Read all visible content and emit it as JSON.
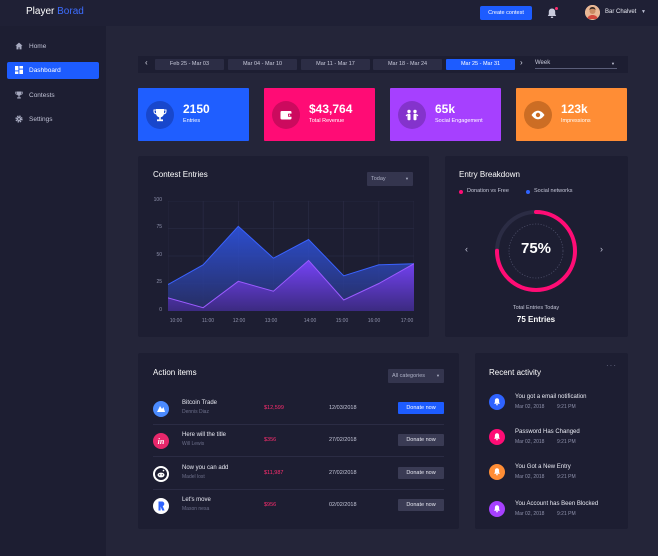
{
  "brand": {
    "part1": "Player",
    "part2": "Borad"
  },
  "topbar": {
    "create_label": "Create contest",
    "user_name": "Bar Chalvet"
  },
  "sidebar": {
    "items": [
      {
        "label": "Home",
        "icon": "home-icon"
      },
      {
        "label": "Dashboard",
        "icon": "dashboard-icon",
        "active": true
      },
      {
        "label": "Contests",
        "icon": "trophy-icon"
      },
      {
        "label": "Settings",
        "icon": "gear-icon"
      }
    ]
  },
  "datebar": {
    "ranges": [
      "Feb 25 - Mar 03",
      "Mar 04 - Mar 10",
      "Mar 11 - Mar 17",
      "Mar 18 - Mar 24",
      "Mar 25 - Mar 31"
    ],
    "active_index": 4,
    "period": "Week"
  },
  "stats": [
    {
      "value": "2150",
      "label": "Entries",
      "color": "#1f5eff",
      "icon": "trophy-icon"
    },
    {
      "value": "$43,764",
      "label": "Total Revenue",
      "color": "#ff0c75",
      "icon": "wallet-icon"
    },
    {
      "value": "65k",
      "label": "Social Engagement",
      "color": "#a640ff",
      "icon": "people-icon"
    },
    {
      "value": "123k",
      "label": "Impressions",
      "color": "#ff8d35",
      "icon": "eye-icon"
    }
  ],
  "contest_entries": {
    "title": "Contest Entries",
    "filter": "Today"
  },
  "chart_data": {
    "type": "area",
    "x": [
      "10:00",
      "11:00",
      "12:00",
      "13:00",
      "14:00",
      "15:00",
      "16:00",
      "17:00"
    ],
    "yticks": [
      0,
      25,
      50,
      75,
      100
    ],
    "ylim": [
      0,
      100
    ],
    "grid": true,
    "series": [
      {
        "color": "#3659e8",
        "values": [
          24,
          42,
          77,
          48,
          65,
          32,
          42,
          43
        ]
      },
      {
        "color": "#7d43ff",
        "values": [
          12,
          3,
          27,
          18,
          46,
          10,
          25,
          43
        ]
      }
    ]
  },
  "entry_breakdown": {
    "title": "Entry Breakdown",
    "legend": [
      {
        "label": "Donation vs Free",
        "color": "#ff0c75"
      },
      {
        "label": "Social networks",
        "color": "#2f63ff"
      }
    ],
    "percent_label": "75%",
    "percent": 0.75,
    "total_label": "Total Entries Today",
    "total_value": "75 Entries"
  },
  "action_items": {
    "title": "Action items",
    "filter": "All categories",
    "rows": [
      {
        "name": "Bitcoin Trade",
        "sub": "Dennis Diaz",
        "price": "$12,599",
        "date": "12/03/2018",
        "button": "Donate now",
        "primary": true,
        "icon_color": "#4b8bff",
        "icon": "bitcoin-logo-icon"
      },
      {
        "name": "Here will the title",
        "sub": "Will Lewis",
        "price": "$356",
        "date": "27/02/2018",
        "button": "Donate now",
        "primary": false,
        "icon_color": "#e8276b",
        "icon": "invision-logo-icon"
      },
      {
        "name": "Now you can add",
        "sub": "Madel lost",
        "price": "$11,987",
        "date": "27/02/2018",
        "button": "Donate now",
        "primary": false,
        "icon_color": "#ffffff",
        "icon": "reddit-logo-icon"
      },
      {
        "name": "Let's move",
        "sub": "Mason nesa",
        "price": "$956",
        "date": "02/02/2018",
        "button": "Donate now",
        "primary": false,
        "icon_color": "#ffffff",
        "icon": "brand-r-logo-icon"
      }
    ]
  },
  "recent_activity": {
    "title": "Recent activity",
    "items": [
      {
        "title": "You got a email notification",
        "date": "Mar 02, 2018",
        "time": "9:21 PM",
        "color": "#2f63ff"
      },
      {
        "title": "Password Has Changed",
        "date": "Mar 02, 2018",
        "time": "9:21 PM",
        "color": "#ff0c75"
      },
      {
        "title": "You Got a New Entry",
        "date": "Mar 02, 2018",
        "time": "9:21 PM",
        "color": "#ff8d35"
      },
      {
        "title": "You Account has Been Blocked",
        "date": "Mar 02, 2018",
        "time": "9:21 PM",
        "color": "#a640ff"
      }
    ]
  }
}
